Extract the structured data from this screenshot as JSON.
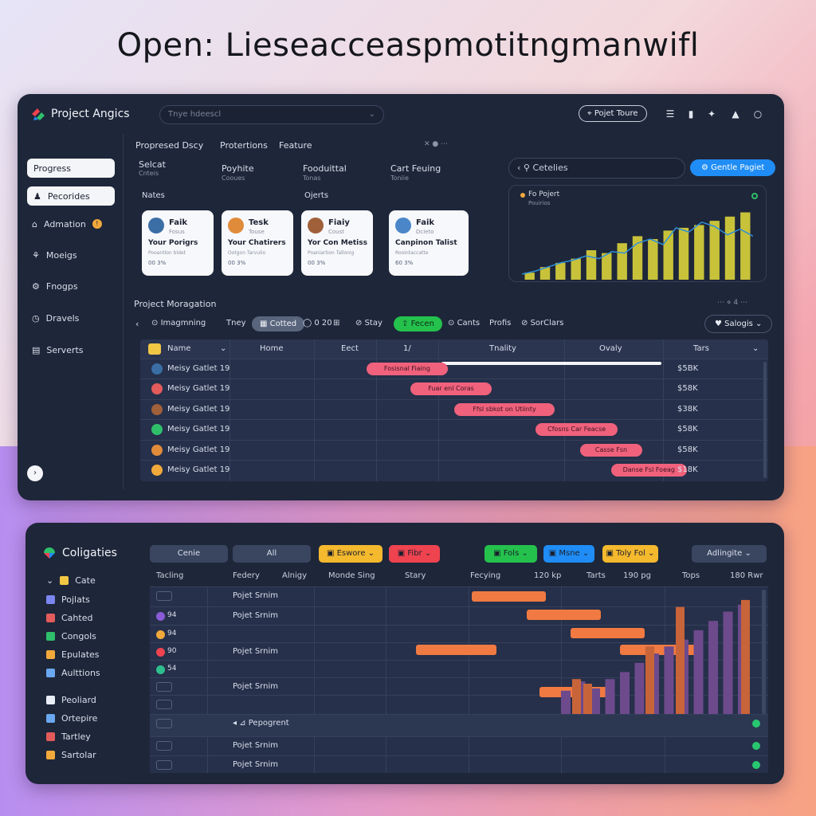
{
  "headline": "Open: Lieseacceaspmotitngmanwifl",
  "top_panel": {
    "app_title": "Project Angics",
    "search_placeholder": "Tnye hdeescl",
    "header_button": "Pojet Toure",
    "sidebar": [
      {
        "label": "Progress",
        "icon": "none",
        "selected": true
      },
      {
        "label": "Pecorides",
        "icon": "person-icon",
        "selected": true
      },
      {
        "label": "Admation",
        "icon": "lock-icon",
        "badge": "!"
      },
      {
        "label": "Moeigs",
        "icon": "nodes-icon"
      },
      {
        "label": "Fnogps",
        "icon": "gear-icon"
      },
      {
        "label": "Dravels",
        "icon": "clock-icon"
      },
      {
        "label": "Serverts",
        "icon": "server-icon"
      }
    ],
    "tabs": [
      "Propresed Dscy",
      "Protertions",
      "Feature"
    ],
    "filters": [
      {
        "label": "Selcat",
        "sub": "Cnteis"
      },
      {
        "label": "Poyhite",
        "sub": "Cooues"
      },
      {
        "label": "Fooduittal",
        "sub": "Tonas"
      },
      {
        "label": "Cart Feuing",
        "sub": "Toniie"
      }
    ],
    "notes_label": "Nates",
    "objects_label": "Ojerts",
    "cards": [
      {
        "name": "Faik",
        "sub": "Fosus",
        "title": "Your Porigrs",
        "subtitle": "Pooantlon bldet",
        "pct": "00 3%",
        "avatar_color": "#3a6ea5"
      },
      {
        "name": "Tesk",
        "sub": "Touse",
        "title": "Your Chatirers",
        "subtitle": "Ootgon Tarvulio",
        "pct": "00 3%",
        "avatar_color": "#e08b3a"
      },
      {
        "name": "Fiaiy",
        "sub": "Coust",
        "title": "Yor Con Metiss",
        "subtitle": "Poaniartion Tallonig",
        "pct": "00 3%",
        "avatar_color": "#a0603a"
      },
      {
        "name": "Faik",
        "sub": "Dcieto",
        "title": "Canpinon Talist",
        "subtitle": "Roointaccatte",
        "pct": "60 3%",
        "avatar_color": "#4a86c8"
      }
    ],
    "categories_label": "Cetelies",
    "create_button": "Gentle Pagiet",
    "chart_card_title": "Fo Pojert",
    "chart_card_sub": "Pouirios",
    "chart_data": {
      "type": "bar",
      "series": [
        {
          "values": [
            8,
            12,
            18,
            24,
            28,
            34,
            30,
            40,
            38,
            52,
            58,
            50,
            74,
            68,
            82,
            76,
            64,
            72,
            62
          ]
        },
        {
          "values": [
            10,
            18,
            24,
            30,
            42,
            38,
            52,
            62,
            58,
            70,
            74,
            78,
            84,
            90,
            96
          ]
        }
      ],
      "ylim": [
        0,
        100
      ],
      "grid": false
    },
    "pm_title": "Project Moragation",
    "pm_toolbar": [
      "Imagmning",
      "Tney",
      "Cotted",
      "0 20",
      "Stay",
      "Fecen",
      "Cants",
      "Profis",
      "SorClars"
    ],
    "pm_right_button": "Salogis",
    "columns": [
      "Name",
      "Home",
      "Eect",
      "1/",
      "Tnality",
      "Ovaly",
      "Tars"
    ],
    "rows": [
      {
        "name": "Meisy Gatlet 19",
        "bar": "Fosisnal Fiaing",
        "amount": "$5BK",
        "start": 0.36,
        "end": 0.49
      },
      {
        "name": "Meisy Gatlet 19",
        "bar": "Fuar enl Coras",
        "amount": "$58K",
        "start": 0.43,
        "end": 0.56
      },
      {
        "name": "Meisy Gatlet 19",
        "bar": "Ffsl sbkot on Utiinty",
        "amount": "$38K",
        "start": 0.5,
        "end": 0.66
      },
      {
        "name": "Meisy Gatlet 19",
        "bar": "Cfosns Car Feacse",
        "amount": "$58K",
        "start": 0.63,
        "end": 0.76
      },
      {
        "name": "Meisy Gatlet 19",
        "bar": "Casse Fsn",
        "amount": "$58K",
        "start": 0.7,
        "end": 0.8
      },
      {
        "name": "Meisy Gatlet 19",
        "bar": "Danse Fsl Foeag",
        "amount": "$18K",
        "start": 0.75,
        "end": 0.87
      }
    ]
  },
  "bottom_panel": {
    "title": "Coligaties",
    "sidebar": [
      {
        "label": "Cate",
        "icon": "face-icon",
        "color": "#f2c744"
      },
      {
        "label": "Pojlats",
        "icon": "doc-icon",
        "color": "#7b86f0"
      },
      {
        "label": "Cahted",
        "icon": "calendar-icon",
        "color": "#e35b5b"
      },
      {
        "label": "Congols",
        "icon": "grid-icon",
        "color": "#2fbf6b"
      },
      {
        "label": "Epulates",
        "icon": "chrome-icon",
        "color": "#f2a93b"
      },
      {
        "label": "Aulttions",
        "icon": "pages-icon",
        "color": "#6aa8f0"
      },
      {
        "label": "Peoliard",
        "icon": "sheet-icon",
        "color": "#e9eef6"
      },
      {
        "label": "Ortepire",
        "icon": "window-icon",
        "color": "#6aa8f0"
      },
      {
        "label": "Tartley",
        "icon": "tag-icon",
        "color": "#e35b5b"
      },
      {
        "label": "Sartolar",
        "icon": "chrome-icon",
        "color": "#f2a93b"
      }
    ],
    "toolbar": [
      {
        "label": "Cenie",
        "color": "#3a4560"
      },
      {
        "label": "All",
        "color": "#3a4560"
      },
      {
        "label": "Eswore",
        "color": "#f5b92e"
      },
      {
        "label": "Fibr",
        "color": "#ef4350"
      },
      {
        "label": "Fols",
        "color": "#24c24d"
      },
      {
        "label": "Msne",
        "color": "#1f8df5"
      },
      {
        "label": "Toly Fol",
        "color": "#f5b92e"
      },
      {
        "label": "Adlingite",
        "color": "#3a4560"
      }
    ],
    "columns": [
      "Tacling",
      "Federy",
      "Alnigy",
      "Monde Sing",
      "Stary",
      "Fecying",
      "120 kp",
      "Tarts",
      "190 pg",
      "Tops",
      "180 Rwr"
    ],
    "rows": [
      {
        "lead": "",
        "label": "Pojet Srnim",
        "dot": ""
      },
      {
        "lead": "94",
        "label": "Pojet Srnim",
        "dot": "#8a5bd6"
      },
      {
        "lead": "94",
        "label": "",
        "dot": "#f2a93b"
      },
      {
        "lead": "90",
        "label": "Pojet Srnim",
        "dot": "#ef4350"
      },
      {
        "lead": "54",
        "label": "",
        "dot": "#2fbf8f"
      },
      {
        "lead": "",
        "label": "Pojet Srnim",
        "dot": ""
      },
      {
        "lead": "",
        "label": "",
        "dot": ""
      },
      {
        "lead": "",
        "label": "Pepogrent",
        "dot": ""
      },
      {
        "lead": "",
        "label": "Pojet Srnim",
        "dot": ""
      },
      {
        "lead": "",
        "label": "Pojet Srnim",
        "dot": ""
      }
    ],
    "gantt_bars": [
      {
        "start": 0.52,
        "end": 0.64
      },
      {
        "start": 0.61,
        "end": 0.73
      },
      {
        "start": 0.68,
        "end": 0.8
      },
      {
        "start": 0.43,
        "end": 0.56
      },
      {
        "start": 0.76,
        "end": 0.89
      },
      {
        "start": 0.63,
        "end": 0.74
      }
    ],
    "chart_data": {
      "type": "bar",
      "series": [
        {
          "color": "#6d4a8c",
          "values": [
            20,
            28,
            22,
            30,
            36,
            44,
            52,
            58,
            64,
            72,
            80,
            88,
            94
          ]
        },
        {
          "color": "#c8643a",
          "values": [
            30,
            26,
            58,
            92,
            98
          ]
        }
      ],
      "ylim": [
        0,
        100
      ],
      "grid": false
    }
  }
}
